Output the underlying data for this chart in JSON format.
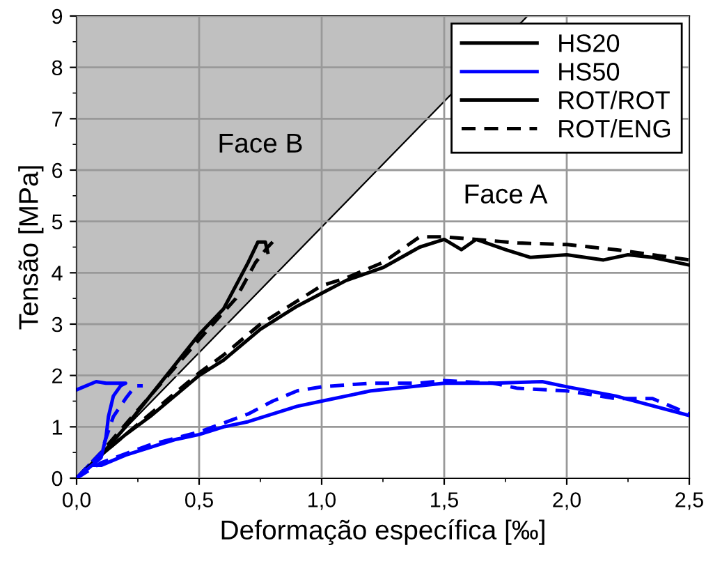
{
  "chart_data": {
    "type": "line",
    "xlabel": "Deformação específica [‰]",
    "ylabel": "Tensão [MPa]",
    "xlim": [
      0,
      2.5
    ],
    "xticks": [
      {
        "value": 0,
        "label": "0,0"
      },
      {
        "value": 0.5,
        "label": "0,5"
      },
      {
        "value": 1,
        "label": "1,0"
      },
      {
        "value": 1.5,
        "label": "1,5"
      },
      {
        "value": 2,
        "label": "2,0"
      },
      {
        "value": 2.5,
        "label": "2,5"
      }
    ],
    "ylim": [
      0,
      9
    ],
    "yticks": [
      0,
      1,
      2,
      3,
      4,
      5,
      6,
      7,
      8,
      9
    ],
    "grid": true,
    "legend": "top right",
    "annotations": [
      "Face B",
      "Face A"
    ],
    "series": [
      {
        "type": "area",
        "color": "#c0c0c0",
        "x": [
          0,
          1.84
        ],
        "values": [
          0,
          9
        ]
      },
      {
        "name": "HS20",
        "color": "#000000",
        "line_style": "solid",
        "x": [
          0,
          0.1,
          0.2,
          0.3,
          0.4,
          0.5,
          0.6,
          0.75,
          0.9,
          1.0,
          1.1,
          1.25,
          1.4,
          1.5,
          1.57,
          1.63,
          1.75,
          1.85,
          2.0,
          2.15,
          2.25,
          2.35,
          2.5
        ],
        "values": [
          0,
          0.45,
          0.85,
          1.2,
          1.6,
          2.0,
          2.3,
          2.9,
          3.35,
          3.6,
          3.85,
          4.1,
          4.5,
          4.65,
          4.45,
          4.65,
          4.45,
          4.3,
          4.35,
          4.25,
          4.35,
          4.3,
          4.15
        ]
      },
      {
        "name": "HS50",
        "color": "#0000ff",
        "line_style": "solid",
        "x": [
          0,
          0.05,
          0.1,
          0.2,
          0.3,
          0.4,
          0.5,
          0.6,
          0.7,
          0.8,
          0.9,
          1.0,
          1.2,
          1.4,
          1.5,
          1.7,
          1.9,
          2.0,
          2.2,
          2.5
        ],
        "values": [
          0,
          0.25,
          0.25,
          0.45,
          0.6,
          0.75,
          0.85,
          1.0,
          1.1,
          1.25,
          1.4,
          1.5,
          1.7,
          1.8,
          1.85,
          1.85,
          1.88,
          1.78,
          1.6,
          1.22
        ]
      },
      {
        "name": "ROT/ROT",
        "color": "#000000",
        "line_style": "solid",
        "x": [
          0,
          0.1,
          0.2,
          0.3,
          0.4,
          0.5,
          0.6,
          0.7,
          0.74,
          0.77,
          0.78
        ],
        "values": [
          0,
          0.45,
          1.0,
          1.6,
          2.2,
          2.8,
          3.3,
          4.2,
          4.6,
          4.6,
          4.4
        ]
      },
      {
        "name": "ROT/ENG",
        "color": "#000000",
        "line_style": "dashed",
        "x": [
          0,
          0.1,
          0.2,
          0.3,
          0.4,
          0.5,
          0.6,
          0.75,
          0.9,
          1.0,
          1.1,
          1.25,
          1.4,
          1.5,
          1.63,
          1.8,
          2.0,
          2.2,
          2.5
        ],
        "values": [
          0,
          0.45,
          0.85,
          1.25,
          1.65,
          2.05,
          2.4,
          3.0,
          3.45,
          3.75,
          3.9,
          4.2,
          4.7,
          4.7,
          4.65,
          4.58,
          4.55,
          4.45,
          4.25
        ]
      },
      {
        "color": "#000000",
        "line_style": "dashed",
        "x": [
          0,
          0.1,
          0.2,
          0.3,
          0.4,
          0.5,
          0.65,
          0.73,
          0.78,
          0.8
        ],
        "values": [
          0,
          0.5,
          1.05,
          1.6,
          2.15,
          2.7,
          3.5,
          4.2,
          4.5,
          4.6
        ]
      },
      {
        "color": "#0000ff",
        "line_style": "dashed",
        "x": [
          0,
          0.1,
          0.3,
          0.5,
          0.7,
          0.8,
          0.9,
          1.0,
          1.2,
          1.4,
          1.5,
          1.7,
          1.8,
          2.0,
          2.2,
          2.35,
          2.5
        ],
        "values": [
          0,
          0.3,
          0.65,
          0.9,
          1.25,
          1.5,
          1.7,
          1.78,
          1.85,
          1.85,
          1.9,
          1.85,
          1.75,
          1.7,
          1.55,
          1.55,
          1.25
        ]
      },
      {
        "color": "#0000ff",
        "line_style": "solid",
        "x": [
          0,
          0.1,
          0.12,
          0.13,
          0.15,
          0.18,
          0.2,
          0.12,
          0.08,
          0
        ],
        "values": [
          0,
          0.4,
          0.8,
          1.2,
          1.6,
          1.8,
          1.85,
          1.85,
          1.88,
          1.72
        ]
      },
      {
        "color": "#0000ff",
        "line_style": "dashed",
        "x": [
          0,
          0.1,
          0.15,
          0.2,
          0.24,
          0.27
        ],
        "values": [
          0,
          0.5,
          1.2,
          1.55,
          1.8,
          1.8
        ]
      }
    ]
  }
}
